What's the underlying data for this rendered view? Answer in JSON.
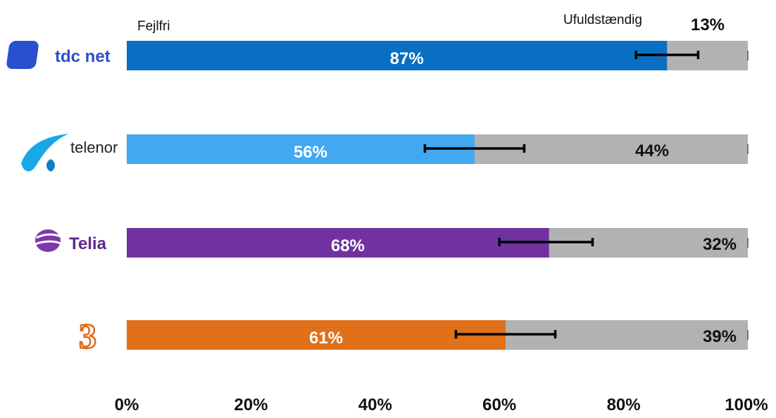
{
  "chart_data": {
    "type": "bar",
    "stacked": true,
    "orientation": "horizontal",
    "categories": [
      "tdc net",
      "telenor",
      "Telia",
      "3"
    ],
    "series": [
      {
        "name": "Fejlfri",
        "values": [
          87,
          56,
          68,
          61
        ],
        "labels": [
          "87%",
          "56%",
          "68%",
          "61%"
        ]
      },
      {
        "name": "Ufuldstændig",
        "values": [
          13,
          44,
          32,
          39
        ],
        "labels": [
          "13%",
          "44%",
          "32%",
          "39%"
        ]
      }
    ],
    "error_bars": [
      [
        82,
        92
      ],
      [
        48,
        64
      ],
      [
        60,
        75
      ],
      [
        53,
        69
      ]
    ],
    "x_ticks": [
      "0%",
      "20%",
      "40%",
      "60%",
      "80%",
      "100%"
    ],
    "xlim": [
      0,
      100
    ],
    "grid": false,
    "legend": "top",
    "colors": {
      "bars": [
        "#0a6fc2",
        "#42a8f0",
        "#7032a1",
        "#e07019"
      ],
      "remainder": "#b2b2b2",
      "error": "#000000"
    }
  },
  "logos": [
    {
      "text": "tdc net",
      "color": "#2a4fd0"
    },
    {
      "text": "telenor",
      "color": "#222222"
    },
    {
      "text": "Telia",
      "color": "#5d2a8c"
    },
    {
      "text": "3",
      "color": "#e06a1a"
    }
  ]
}
